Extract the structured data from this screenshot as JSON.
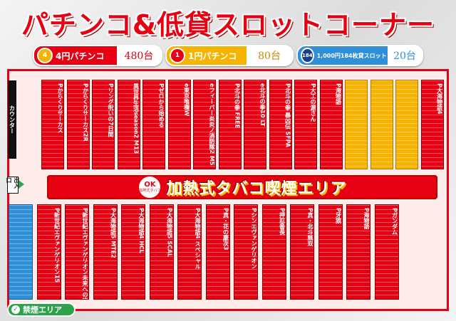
{
  "title": "パチンコ&低貸スロットコーナー",
  "legend": [
    {
      "badge": "4",
      "label": "4円パチンコ",
      "count": "480台",
      "color": "#e60012",
      "count_color": "#e60012"
    },
    {
      "badge": "1",
      "label": "1円パチンコ",
      "count": "80台",
      "color": "#f6b400",
      "count_color": "#c98a00"
    },
    {
      "badge": "184",
      "label": "1,000円184枚貸スロット",
      "count": "20台",
      "color": "#2f8fd8",
      "count_color": "#2f8fd8"
    }
  ],
  "counter_label": "カウンター",
  "exit_label": "出入口",
  "smoking_area": {
    "ok": "OK",
    "ok_sub": "加熱式タバコ",
    "label": "加熱式タバコ喫煙エリア"
  },
  "nosmoking_label": "禁煙エリア",
  "top_blocks": [
    {
      "label": "Pからくりサーカス",
      "color": "red"
    },
    {
      "label": "Pからくりサーカス2R",
      "color": "red"
    },
    {
      "label": "Pリング呪いの7日間",
      "color": "red"
    },
    {
      "label": "異世界生活season2 M13",
      "color": "red"
    },
    {
      "label": "Pゼロから始める",
      "color": "red"
    },
    {
      "label": "e東京喰種W",
      "color": "red"
    },
    {
      "label": "eフィーバー炎炎ノ消防隊2 M5",
      "color": "red"
    },
    {
      "label": "P北斗の拳 FREE",
      "color": "red"
    },
    {
      "label": "e北斗の拳10 LT",
      "color": "red"
    },
    {
      "label": "P北斗の拳 暴凶伝 SFPA",
      "color": "red"
    },
    {
      "label": "P大工の源さん",
      "color": "red"
    },
    {
      "label": "P海物語",
      "color": "red"
    },
    {
      "label": "",
      "color": "yellow"
    },
    {
      "label": "",
      "color": "yellow"
    },
    {
      "label": "",
      "color": "yellow"
    },
    {
      "label": "P大海物語4",
      "color": "red"
    }
  ],
  "bottom_blocks": [
    {
      "label": "",
      "color": "blue"
    },
    {
      "label": "P新世紀エヴァンゲリオン15",
      "color": "red"
    },
    {
      "label": "P新世紀エヴァンゲリオン未来への咆哮",
      "color": "red"
    },
    {
      "label": "P大海物語5 MTE2",
      "color": "red"
    },
    {
      "label": "P大海物語4 HCL",
      "color": "red"
    },
    {
      "label": "P大海物語5 SCAL",
      "color": "red"
    },
    {
      "label": "P大海物語4 スペシャル",
      "color": "red"
    },
    {
      "label": "P真・花の慶次3",
      "color": "red"
    },
    {
      "label": "Pシンエヴァンゲリオン",
      "color": "red"
    },
    {
      "label": "P押忍番長",
      "color": "red"
    },
    {
      "label": "P真・北斗無双",
      "color": "red"
    },
    {
      "label": "P牙狼",
      "color": "red"
    },
    {
      "label": "P海物語",
      "color": "red"
    },
    {
      "label": "Pガンダム",
      "color": "red"
    }
  ]
}
